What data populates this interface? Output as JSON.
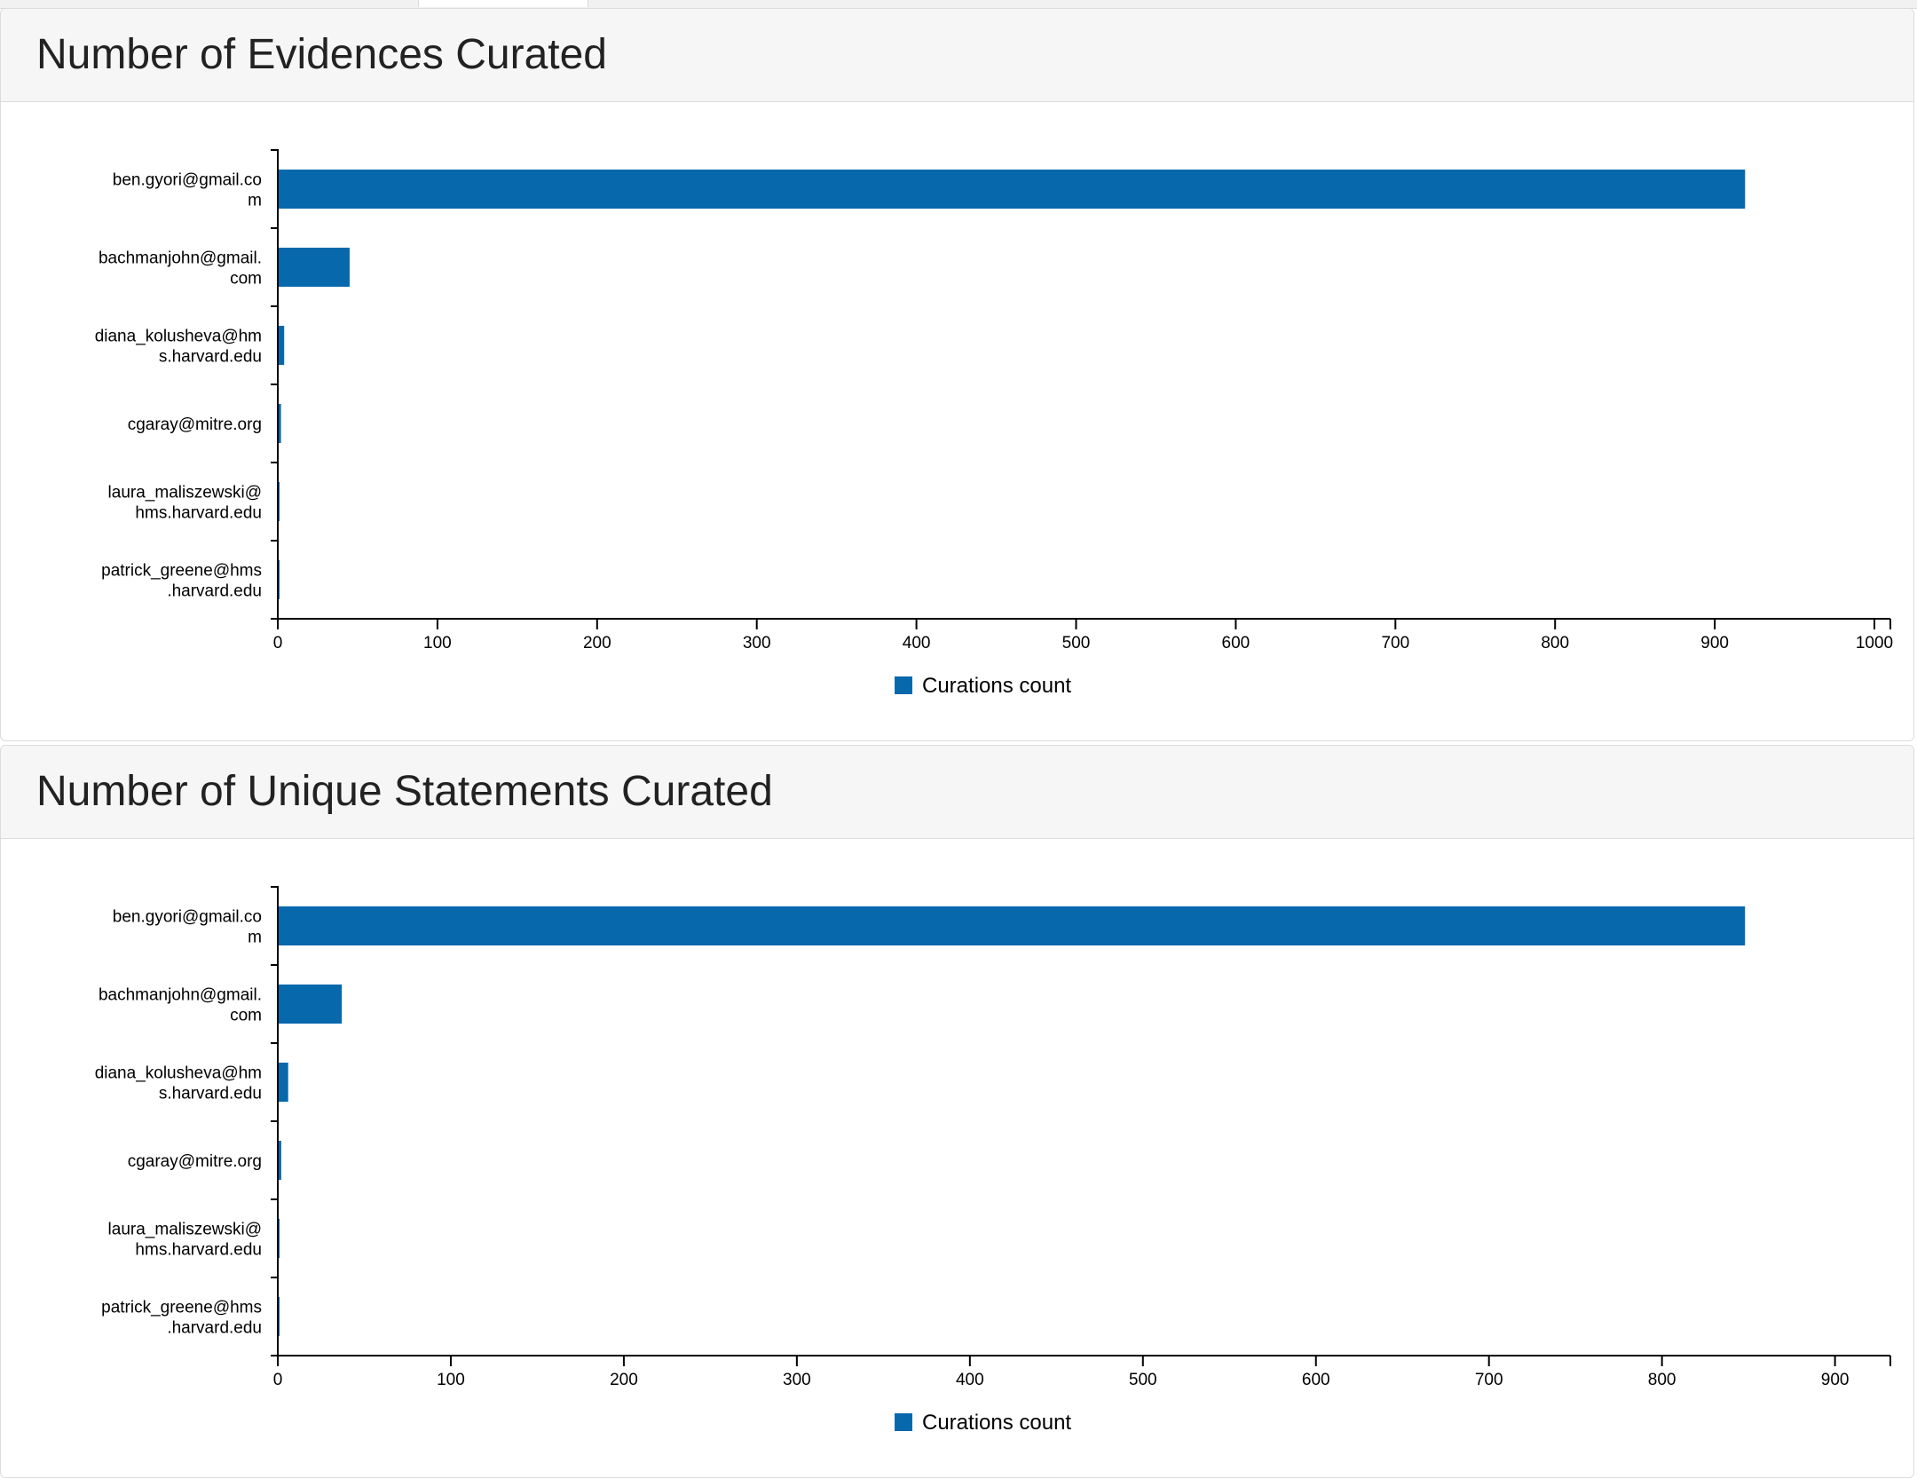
{
  "colors": {
    "bar": "#0868ac",
    "axis": "#000000",
    "header_bg": "#f6f6f6"
  },
  "charts": [
    {
      "title": "Number of Evidences Curated",
      "chart_data": {
        "type": "bar",
        "orientation": "horizontal",
        "categories": [
          [
            "ben.gyori@gmail.co",
            "m"
          ],
          [
            "bachmanjohn@gmail.",
            "com"
          ],
          [
            "diana_kolusheva@hm",
            "s.harvard.edu"
          ],
          [
            "cgaray@mitre.org"
          ],
          [
            "laura_maliszewski@",
            "hms.harvard.edu"
          ],
          [
            "patrick_greene@hms",
            ".harvard.edu"
          ]
        ],
        "series": [
          {
            "name": "Curations count",
            "values": [
              919,
              45,
              4,
              2,
              1,
              1
            ]
          }
        ],
        "xlim": [
          0,
          1010
        ],
        "xticks": [
          0,
          100,
          200,
          300,
          400,
          500,
          600,
          700,
          800,
          900,
          1000
        ],
        "xlabel": "",
        "ylabel": "",
        "legend": "bottom-center"
      }
    },
    {
      "title": "Number of Unique Statements Curated",
      "chart_data": {
        "type": "bar",
        "orientation": "horizontal",
        "categories": [
          [
            "ben.gyori@gmail.co",
            "m"
          ],
          [
            "bachmanjohn@gmail.",
            "com"
          ],
          [
            "diana_kolusheva@hm",
            "s.harvard.edu"
          ],
          [
            "cgaray@mitre.org"
          ],
          [
            "laura_maliszewski@",
            "hms.harvard.edu"
          ],
          [
            "patrick_greene@hms",
            ".harvard.edu"
          ]
        ],
        "series": [
          {
            "name": "Curations count",
            "values": [
              848,
              37,
              6,
              2,
              1,
              1
            ]
          }
        ],
        "xlim": [
          0,
          932
        ],
        "xticks": [
          0,
          100,
          200,
          300,
          400,
          500,
          600,
          700,
          800,
          900
        ],
        "xlabel": "",
        "ylabel": "",
        "legend": "bottom-center"
      }
    }
  ]
}
